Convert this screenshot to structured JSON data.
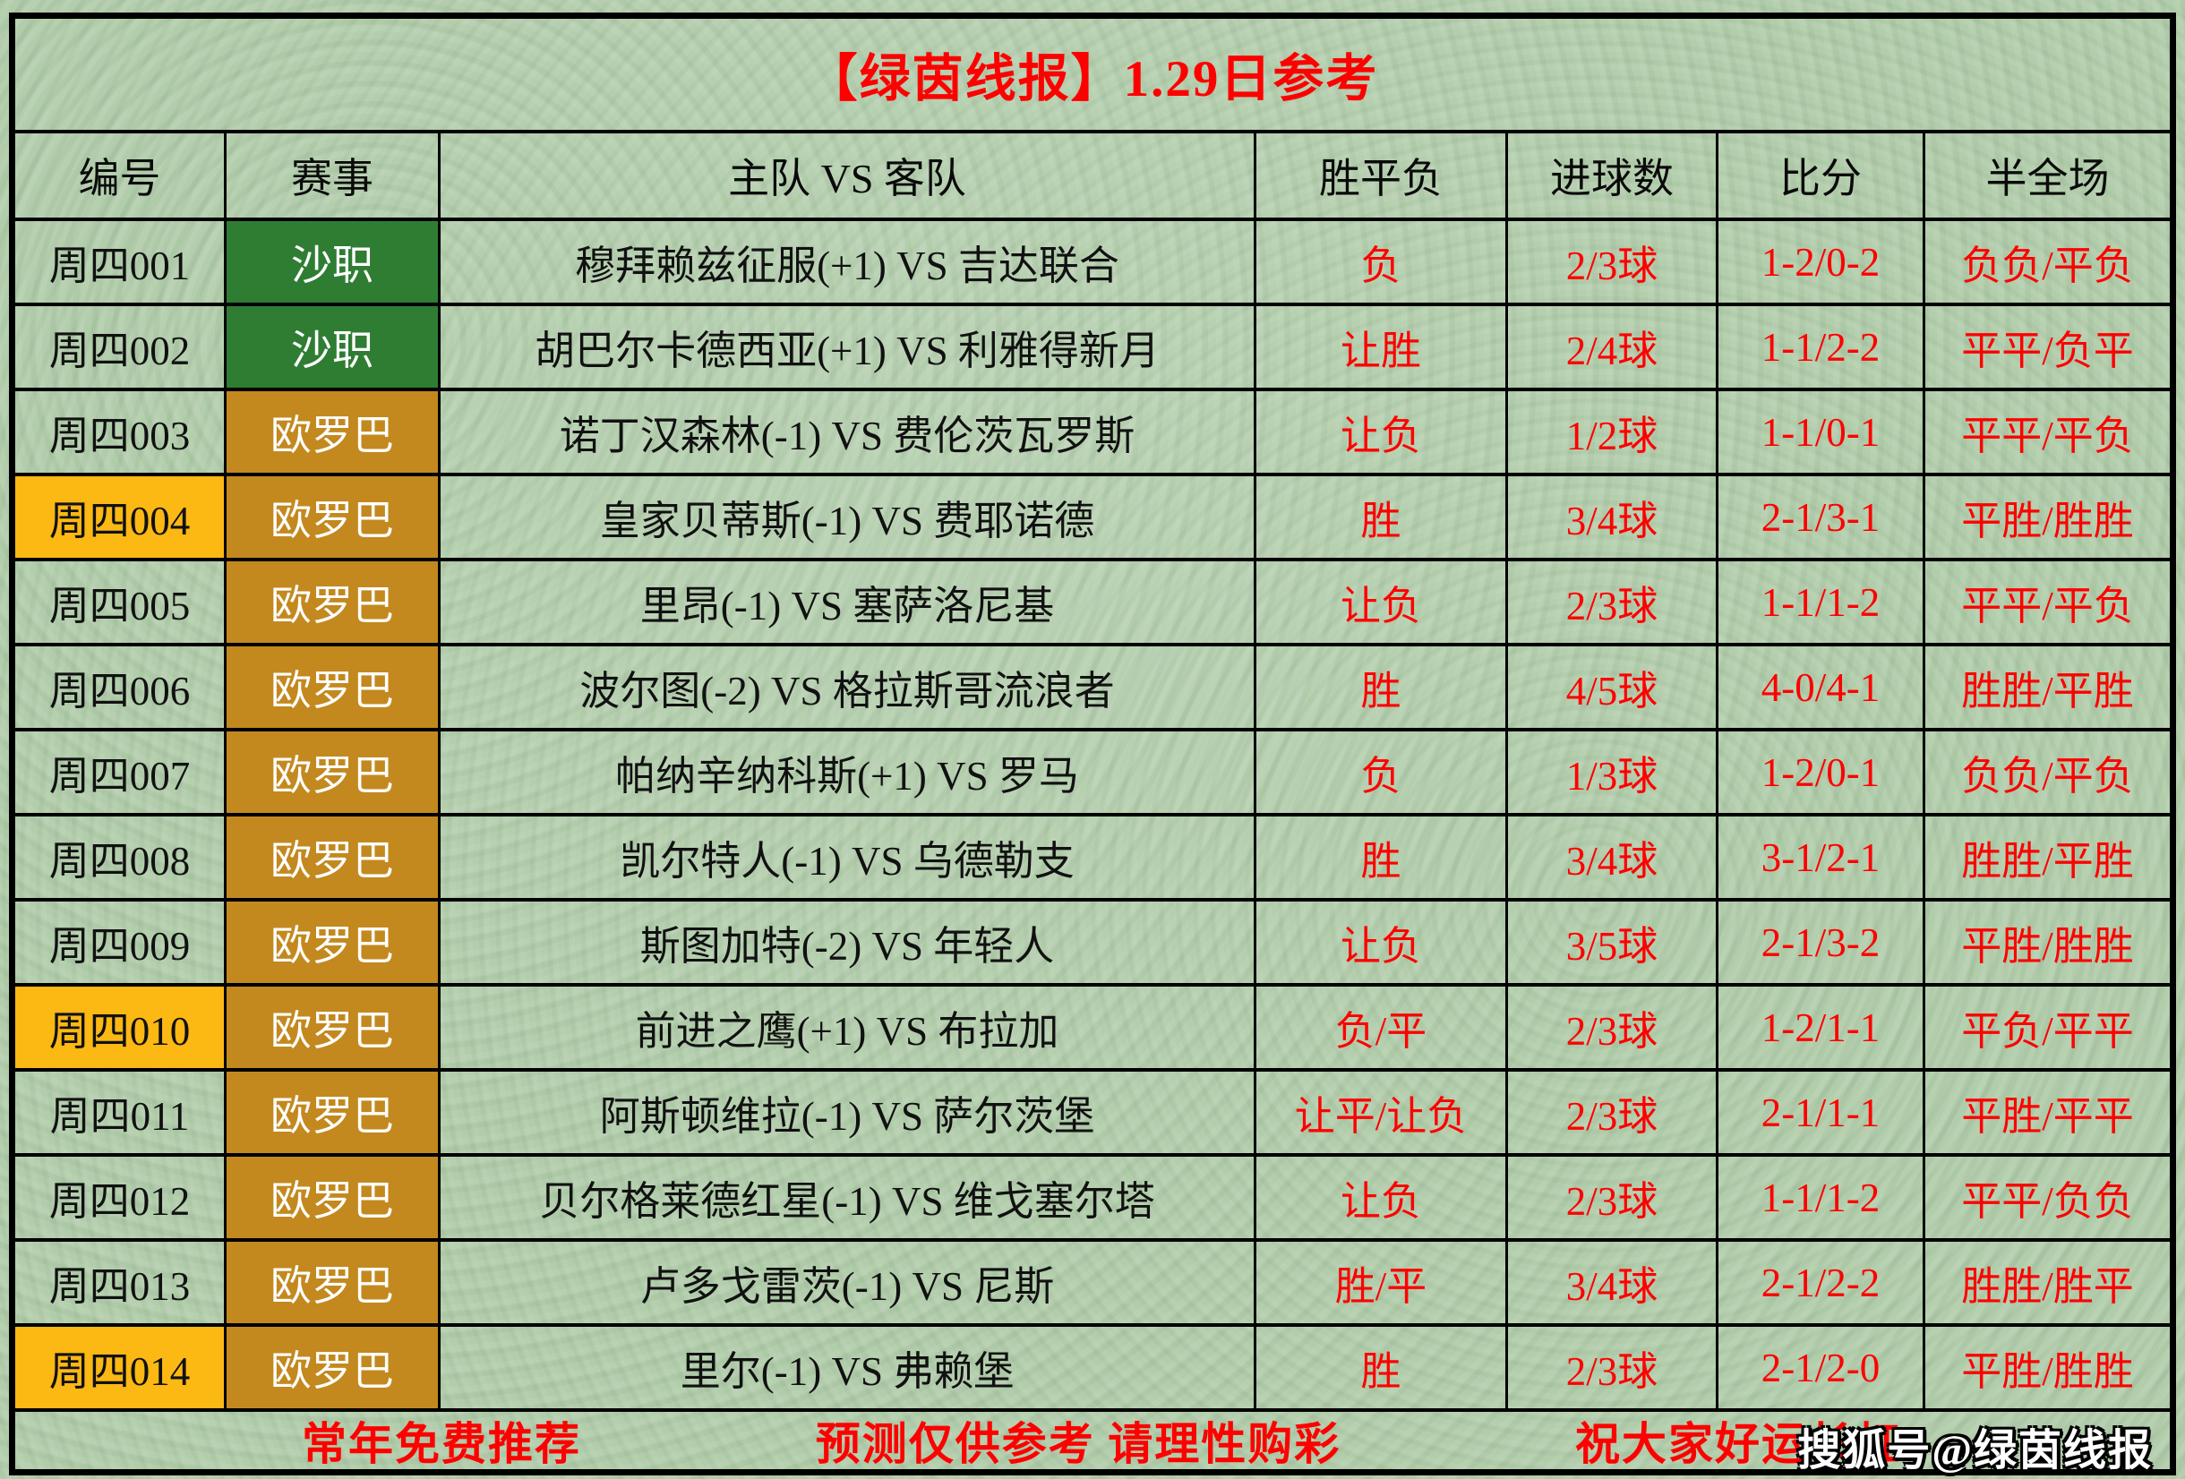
{
  "title": "【绿茵线报】1.29日参考",
  "columns": [
    "编号",
    "赛事",
    "主队 VS 客队",
    "胜平负",
    "进球数",
    "比分",
    "半全场"
  ],
  "rows": [
    {
      "id": "周四001",
      "highlight": false,
      "league": "沙职",
      "league_color": "green",
      "match": "穆拜赖兹征服(+1) VS 吉达联合",
      "wdl": "负",
      "goals": "2/3球",
      "score": "1-2/0-2",
      "htft": "负负/平负"
    },
    {
      "id": "周四002",
      "highlight": false,
      "league": "沙职",
      "league_color": "green",
      "match": "胡巴尔卡德西亚(+1) VS 利雅得新月",
      "wdl": "让胜",
      "goals": "2/4球",
      "score": "1-1/2-2",
      "htft": "平平/负平"
    },
    {
      "id": "周四003",
      "highlight": false,
      "league": "欧罗巴",
      "league_color": "gold",
      "match": "诺丁汉森林(-1) VS 费伦茨瓦罗斯",
      "wdl": "让负",
      "goals": "1/2球",
      "score": "1-1/0-1",
      "htft": "平平/平负"
    },
    {
      "id": "周四004",
      "highlight": true,
      "league": "欧罗巴",
      "league_color": "gold",
      "match": "皇家贝蒂斯(-1) VS 费耶诺德",
      "wdl": "胜",
      "goals": "3/4球",
      "score": "2-1/3-1",
      "htft": "平胜/胜胜"
    },
    {
      "id": "周四005",
      "highlight": false,
      "league": "欧罗巴",
      "league_color": "gold",
      "match": "里昂(-1) VS 塞萨洛尼基",
      "wdl": "让负",
      "goals": "2/3球",
      "score": "1-1/1-2",
      "htft": "平平/平负"
    },
    {
      "id": "周四006",
      "highlight": false,
      "league": "欧罗巴",
      "league_color": "gold",
      "match": "波尔图(-2) VS 格拉斯哥流浪者",
      "wdl": "胜",
      "goals": "4/5球",
      "score": "4-0/4-1",
      "htft": "胜胜/平胜"
    },
    {
      "id": "周四007",
      "highlight": false,
      "league": "欧罗巴",
      "league_color": "gold",
      "match": "帕纳辛纳科斯(+1) VS 罗马",
      "wdl": "负",
      "goals": "1/3球",
      "score": "1-2/0-1",
      "htft": "负负/平负"
    },
    {
      "id": "周四008",
      "highlight": false,
      "league": "欧罗巴",
      "league_color": "gold",
      "match": "凯尔特人(-1) VS 乌德勒支",
      "wdl": "胜",
      "goals": "3/4球",
      "score": "3-1/2-1",
      "htft": "胜胜/平胜"
    },
    {
      "id": "周四009",
      "highlight": false,
      "league": "欧罗巴",
      "league_color": "gold",
      "match": "斯图加特(-2) VS 年轻人",
      "wdl": "让负",
      "goals": "3/5球",
      "score": "2-1/3-2",
      "htft": "平胜/胜胜"
    },
    {
      "id": "周四010",
      "highlight": true,
      "league": "欧罗巴",
      "league_color": "gold",
      "match": "前进之鹰(+1) VS 布拉加",
      "wdl": "负/平",
      "goals": "2/3球",
      "score": "1-2/1-1",
      "htft": "平负/平平"
    },
    {
      "id": "周四011",
      "highlight": false,
      "league": "欧罗巴",
      "league_color": "gold",
      "match": "阿斯顿维拉(-1) VS 萨尔茨堡",
      "wdl": "让平/让负",
      "goals": "2/3球",
      "score": "2-1/1-1",
      "htft": "平胜/平平"
    },
    {
      "id": "周四012",
      "highlight": false,
      "league": "欧罗巴",
      "league_color": "gold",
      "match": "贝尔格莱德红星(-1) VS 维戈塞尔塔",
      "wdl": "让负",
      "goals": "2/3球",
      "score": "1-1/1-2",
      "htft": "平平/负负"
    },
    {
      "id": "周四013",
      "highlight": false,
      "league": "欧罗巴",
      "league_color": "gold",
      "match": "卢多戈雷茨(-1) VS 尼斯",
      "wdl": "胜/平",
      "goals": "3/4球",
      "score": "2-1/2-2",
      "htft": "胜胜/胜平"
    },
    {
      "id": "周四014",
      "highlight": true,
      "league": "欧罗巴",
      "league_color": "gold",
      "match": "里尔(-1) VS 弗赖堡",
      "wdl": "胜",
      "goals": "2/3球",
      "score": "2-1/2-0",
      "htft": "平胜/胜胜"
    }
  ],
  "footer": {
    "left": "常年免费推荐",
    "center": "预测仅供参考  请理性购彩",
    "right": "祝大家好运长虹"
  },
  "watermark": "搜狐号@绿茵线报",
  "colors": {
    "background_green": "#b2cdab",
    "border_black": "#000000",
    "title_red": "#fe0000",
    "prediction_red": "#fe0000",
    "league_green": "#2e7d33",
    "league_gold": "#c3891f",
    "id_highlight_yellow": "#fcb813",
    "league_text_white": "#ffffff"
  }
}
